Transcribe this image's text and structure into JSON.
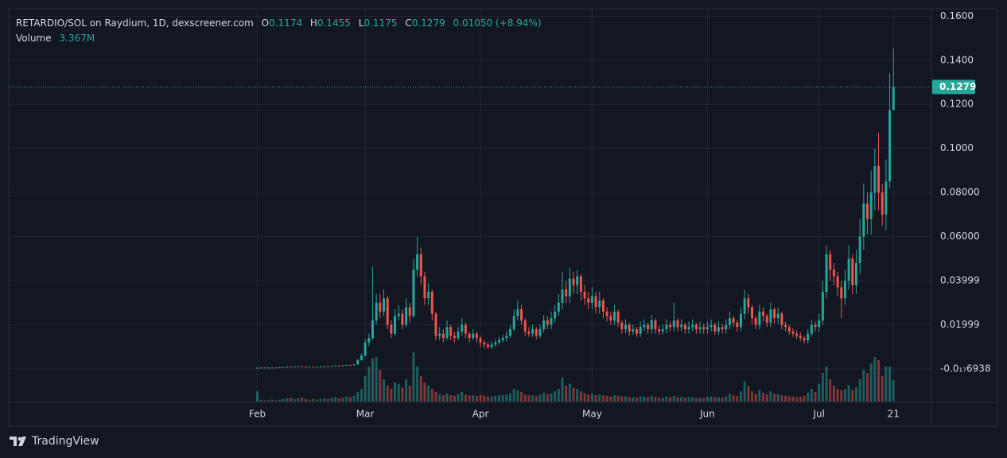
{
  "header": {
    "title": "RETARDIO/SOL on Raydium, 1D, dexscreener.com",
    "ohlc": [
      {
        "label": "O",
        "value": 0.1174
      },
      {
        "label": "H",
        "value": 0.1455
      },
      {
        "label": "L",
        "value": 0.1175
      },
      {
        "label": "C",
        "value": 0.1279
      }
    ],
    "change": "0.01050",
    "change_pct": "(+8.94%)",
    "volume_label": "Volume",
    "volume_value": "3.367M"
  },
  "footer": {
    "brand": "TradingView"
  },
  "chart_data": {
    "type": "candlestick",
    "up_color": "#26a69a",
    "down_color": "#ef5350",
    "grid": true,
    "ylim": [
      -0.0148,
      0.163
    ],
    "yticks": [
      {
        "value": 0.16,
        "label": "0.1600"
      },
      {
        "value": 0.14,
        "label": "0.1400"
      },
      {
        "value": 0.12,
        "label": "0.1200"
      },
      {
        "value": 0.1,
        "label": "0.1000"
      },
      {
        "value": 0.08,
        "label": "0.08000"
      },
      {
        "value": 0.06,
        "label": "0.06000"
      },
      0.03999,
      0.01999,
      {
        "value": -6.938e-18,
        "label": "-0.0₁₇6938"
      }
    ],
    "xlim": [
      -66.6,
      181
    ],
    "xticks": [
      {
        "value": 0,
        "label": "Feb"
      },
      {
        "value": 29,
        "label": "Mar"
      },
      {
        "value": 60,
        "label": "Apr"
      },
      {
        "value": 90,
        "label": "May"
      },
      {
        "value": 121,
        "label": "Jun"
      },
      {
        "value": 151,
        "label": "Jul"
      },
      {
        "value": 171,
        "label": "21"
      }
    ],
    "volume_lim": [
      0,
      12.5
    ],
    "open": [
      0.0005,
      0.0005,
      0.0006,
      0.0005,
      0.0006,
      0.0006,
      0.0005,
      0.0007,
      0.0008,
      0.001,
      0.0009,
      0.0011,
      0.0012,
      0.001,
      0.0009,
      0.001,
      0.0008,
      0.0009,
      0.001,
      0.0012,
      0.0011,
      0.0013,
      0.0015,
      0.0014,
      0.0016,
      0.0018,
      0.0017,
      0.002,
      0.004,
      0.006,
      0.012,
      0.014,
      0.022,
      0.03,
      0.026,
      0.032,
      0.02,
      0.016,
      0.024,
      0.025,
      0.02,
      0.028,
      0.024,
      0.045,
      0.052,
      0.042,
      0.032,
      0.035,
      0.025,
      0.015,
      0.016,
      0.014,
      0.019,
      0.015,
      0.014,
      0.017,
      0.02,
      0.016,
      0.014,
      0.016,
      0.014,
      0.012,
      0.011,
      0.01,
      0.011,
      0.012,
      0.013,
      0.014,
      0.015,
      0.018,
      0.024,
      0.027,
      0.022,
      0.017,
      0.016,
      0.018,
      0.015,
      0.018,
      0.022,
      0.02,
      0.023,
      0.026,
      0.03,
      0.036,
      0.033,
      0.041,
      0.038,
      0.042,
      0.035,
      0.032,
      0.03,
      0.033,
      0.028,
      0.031,
      0.026,
      0.024,
      0.022,
      0.026,
      0.021,
      0.018,
      0.02,
      0.017,
      0.018,
      0.016,
      0.019,
      0.02,
      0.018,
      0.022,
      0.018,
      0.017,
      0.018,
      0.02,
      0.019,
      0.022,
      0.019,
      0.02,
      0.018,
      0.019,
      0.02,
      0.018,
      0.019,
      0.018,
      0.019,
      0.02,
      0.017,
      0.019,
      0.018,
      0.02,
      0.023,
      0.021,
      0.019,
      0.025,
      0.032,
      0.028,
      0.023,
      0.02,
      0.026,
      0.024,
      0.021,
      0.027,
      0.023,
      0.025,
      0.02,
      0.019,
      0.017,
      0.016,
      0.015,
      0.014,
      0.013,
      0.016,
      0.02,
      0.019,
      0.022,
      0.035,
      0.052,
      0.045,
      0.042,
      0.037,
      0.032,
      0.04,
      0.05,
      0.038,
      0.048,
      0.06,
      0.075,
      0.068,
      0.08,
      0.092,
      0.08,
      0.07,
      0.085,
      0.1174
    ],
    "high": [
      0.0006,
      0.0007,
      0.0007,
      0.0007,
      0.0007,
      0.0007,
      0.0008,
      0.0009,
      0.0011,
      0.0011,
      0.0012,
      0.0013,
      0.0013,
      0.0011,
      0.0011,
      0.0011,
      0.001,
      0.0011,
      0.0013,
      0.0013,
      0.0014,
      0.0016,
      0.0016,
      0.0017,
      0.0019,
      0.0019,
      0.0022,
      0.0045,
      0.007,
      0.0135,
      0.016,
      0.0465,
      0.034,
      0.034,
      0.036,
      0.033,
      0.022,
      0.027,
      0.029,
      0.027,
      0.032,
      0.03,
      0.05,
      0.06,
      0.055,
      0.044,
      0.039,
      0.036,
      0.026,
      0.019,
      0.018,
      0.022,
      0.02,
      0.017,
      0.019,
      0.023,
      0.021,
      0.017,
      0.018,
      0.017,
      0.015,
      0.013,
      0.012,
      0.0125,
      0.0135,
      0.0145,
      0.0155,
      0.017,
      0.02,
      0.027,
      0.031,
      0.029,
      0.023,
      0.019,
      0.02,
      0.019,
      0.02,
      0.0245,
      0.024,
      0.026,
      0.029,
      0.034,
      0.044,
      0.04,
      0.046,
      0.044,
      0.045,
      0.043,
      0.038,
      0.035,
      0.037,
      0.035,
      0.035,
      0.032,
      0.028,
      0.026,
      0.029,
      0.027,
      0.022,
      0.0225,
      0.021,
      0.02,
      0.019,
      0.0215,
      0.0225,
      0.021,
      0.0245,
      0.023,
      0.0195,
      0.02,
      0.0225,
      0.0215,
      0.03,
      0.023,
      0.0225,
      0.021,
      0.0215,
      0.0225,
      0.021,
      0.0215,
      0.0205,
      0.0215,
      0.0225,
      0.021,
      0.0215,
      0.0205,
      0.0225,
      0.026,
      0.024,
      0.022,
      0.028,
      0.036,
      0.034,
      0.029,
      0.024,
      0.029,
      0.028,
      0.025,
      0.03,
      0.028,
      0.028,
      0.026,
      0.0215,
      0.02,
      0.0185,
      0.0175,
      0.0165,
      0.015,
      0.018,
      0.0225,
      0.0215,
      0.025,
      0.04,
      0.056,
      0.054,
      0.048,
      0.044,
      0.04,
      0.045,
      0.056,
      0.052,
      0.054,
      0.068,
      0.084,
      0.08,
      0.09,
      0.1,
      0.107,
      0.084,
      0.095,
      0.134,
      0.1455
    ],
    "low": [
      0.0004,
      0.0004,
      0.0004,
      0.0004,
      0.0005,
      0.0004,
      0.0004,
      0.0006,
      0.0007,
      0.0008,
      0.0008,
      0.001,
      0.0009,
      0.0008,
      0.0008,
      0.0007,
      0.0007,
      0.0008,
      0.0009,
      0.001,
      0.001,
      0.0012,
      0.0013,
      0.0013,
      0.0015,
      0.0016,
      0.0016,
      0.0019,
      0.0038,
      0.0055,
      0.0105,
      0.013,
      0.02,
      0.023,
      0.024,
      0.018,
      0.014,
      0.015,
      0.022,
      0.018,
      0.019,
      0.021,
      0.023,
      0.042,
      0.038,
      0.029,
      0.029,
      0.022,
      0.013,
      0.013,
      0.012,
      0.013,
      0.013,
      0.012,
      0.013,
      0.015,
      0.014,
      0.012,
      0.013,
      0.012,
      0.01,
      0.0095,
      0.009,
      0.009,
      0.01,
      0.011,
      0.012,
      0.0125,
      0.014,
      0.017,
      0.022,
      0.02,
      0.015,
      0.0145,
      0.0145,
      0.0135,
      0.014,
      0.0165,
      0.018,
      0.018,
      0.021,
      0.024,
      0.027,
      0.03,
      0.03,
      0.034,
      0.034,
      0.031,
      0.029,
      0.027,
      0.027,
      0.025,
      0.025,
      0.023,
      0.0215,
      0.02,
      0.02,
      0.019,
      0.016,
      0.016,
      0.015,
      0.0155,
      0.0145,
      0.0145,
      0.017,
      0.016,
      0.016,
      0.016,
      0.0155,
      0.0155,
      0.016,
      0.017,
      0.017,
      0.017,
      0.017,
      0.016,
      0.016,
      0.017,
      0.016,
      0.016,
      0.016,
      0.016,
      0.017,
      0.0155,
      0.0155,
      0.016,
      0.016,
      0.018,
      0.019,
      0.017,
      0.017,
      0.0225,
      0.025,
      0.0205,
      0.018,
      0.018,
      0.0215,
      0.019,
      0.019,
      0.0205,
      0.0205,
      0.018,
      0.017,
      0.0155,
      0.0145,
      0.0135,
      0.0125,
      0.0115,
      0.0115,
      0.0145,
      0.017,
      0.017,
      0.02,
      0.032,
      0.04,
      0.038,
      0.033,
      0.023,
      0.029,
      0.036,
      0.034,
      0.034,
      0.043,
      0.054,
      0.061,
      0.061,
      0.072,
      0.072,
      0.065,
      0.063,
      0.082,
      0.1175
    ],
    "close": [
      0.0005,
      0.0006,
      0.0005,
      0.0006,
      0.0006,
      0.0005,
      0.0007,
      0.0008,
      0.001,
      0.0009,
      0.0011,
      0.0012,
      0.001,
      0.0009,
      0.001,
      0.0008,
      0.0009,
      0.001,
      0.0012,
      0.0011,
      0.0013,
      0.0015,
      0.0014,
      0.0016,
      0.0018,
      0.0017,
      0.002,
      0.004,
      0.006,
      0.012,
      0.014,
      0.022,
      0.03,
      0.026,
      0.032,
      0.02,
      0.016,
      0.024,
      0.025,
      0.02,
      0.028,
      0.024,
      0.045,
      0.052,
      0.042,
      0.032,
      0.035,
      0.025,
      0.015,
      0.016,
      0.014,
      0.019,
      0.015,
      0.014,
      0.017,
      0.02,
      0.016,
      0.014,
      0.016,
      0.014,
      0.012,
      0.011,
      0.01,
      0.011,
      0.012,
      0.013,
      0.014,
      0.015,
      0.018,
      0.024,
      0.027,
      0.022,
      0.017,
      0.016,
      0.018,
      0.015,
      0.018,
      0.022,
      0.02,
      0.023,
      0.026,
      0.03,
      0.036,
      0.033,
      0.041,
      0.038,
      0.042,
      0.035,
      0.032,
      0.03,
      0.033,
      0.028,
      0.031,
      0.026,
      0.024,
      0.022,
      0.026,
      0.021,
      0.018,
      0.02,
      0.017,
      0.018,
      0.016,
      0.019,
      0.02,
      0.018,
      0.022,
      0.018,
      0.017,
      0.018,
      0.02,
      0.019,
      0.022,
      0.019,
      0.02,
      0.018,
      0.019,
      0.02,
      0.018,
      0.019,
      0.018,
      0.019,
      0.02,
      0.017,
      0.019,
      0.018,
      0.02,
      0.023,
      0.021,
      0.019,
      0.025,
      0.032,
      0.028,
      0.023,
      0.02,
      0.026,
      0.024,
      0.021,
      0.027,
      0.023,
      0.025,
      0.02,
      0.019,
      0.017,
      0.016,
      0.015,
      0.014,
      0.013,
      0.016,
      0.02,
      0.019,
      0.022,
      0.035,
      0.052,
      0.045,
      0.042,
      0.037,
      0.032,
      0.04,
      0.05,
      0.038,
      0.048,
      0.06,
      0.075,
      0.068,
      0.08,
      0.092,
      0.08,
      0.07,
      0.085,
      0.1174,
      0.1279
    ],
    "volume": [
      1.6,
      0.3,
      0.2,
      0.2,
      0.3,
      0.2,
      0.3,
      0.4,
      0.5,
      0.6,
      0.4,
      0.5,
      0.6,
      0.4,
      0.3,
      0.4,
      0.3,
      0.4,
      0.5,
      0.4,
      0.6,
      0.7,
      0.5,
      0.6,
      0.8,
      0.7,
      0.9,
      1.5,
      2.0,
      4.0,
      5.5,
      6.8,
      7.0,
      5.0,
      3.5,
      2.5,
      2.0,
      3.0,
      2.8,
      2.2,
      3.5,
      2.5,
      7.7,
      5.5,
      4.0,
      3.0,
      2.5,
      2.0,
      1.5,
      1.2,
      1.0,
      1.3,
      1.0,
      0.9,
      1.2,
      1.5,
      1.1,
      1.0,
      1.0,
      0.9,
      1.0,
      0.9,
      0.8,
      0.8,
      0.9,
      1.0,
      1.0,
      1.1,
      1.3,
      2.0,
      1.8,
      1.5,
      1.1,
      1.0,
      1.0,
      0.9,
      1.1,
      1.4,
      1.2,
      1.3,
      1.6,
      2.0,
      3.8,
      2.5,
      2.8,
      2.2,
      2.0,
      1.6,
      1.3,
      1.1,
      1.2,
      1.0,
      1.1,
      1.0,
      0.9,
      0.8,
      1.0,
      0.9,
      0.8,
      0.8,
      0.7,
      0.7,
      0.6,
      0.8,
      0.8,
      0.7,
      0.9,
      0.7,
      0.6,
      0.6,
      0.8,
      0.7,
      0.9,
      0.7,
      0.7,
      0.6,
      0.7,
      0.7,
      0.6,
      0.6,
      0.6,
      0.7,
      0.8,
      0.7,
      0.7,
      0.6,
      0.8,
      1.2,
      1.0,
      0.9,
      1.6,
      3.2,
      2.4,
      1.6,
      1.2,
      1.8,
      1.4,
      1.1,
      1.6,
      1.2,
      1.2,
      1.0,
      0.9,
      0.8,
      0.8,
      0.7,
      0.8,
      0.9,
      1.4,
      2.0,
      1.5,
      2.8,
      4.5,
      5.5,
      3.5,
      2.5,
      2.0,
      1.8,
      2.0,
      2.6,
      1.8,
      2.2,
      3.5,
      5.0,
      4.5,
      6.0,
      7.0,
      6.5,
      4.0,
      5.5,
      5.5,
      3.367
    ]
  }
}
